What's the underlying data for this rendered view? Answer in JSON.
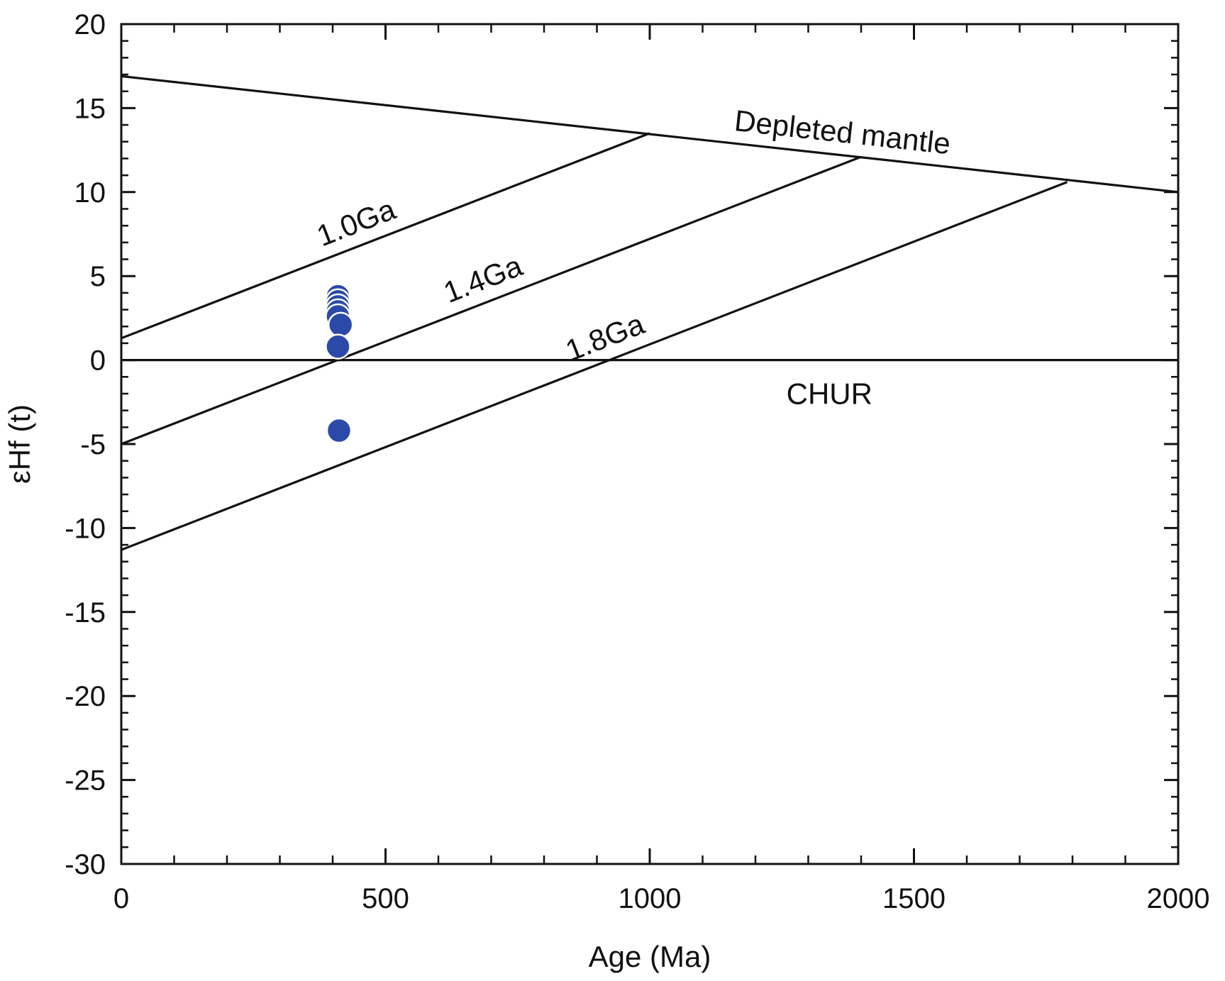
{
  "chart_data": {
    "type": "scatter",
    "title": "",
    "xlabel": "Age (Ma)",
    "ylabel": "εHf (t)",
    "xlim": [
      0,
      2000
    ],
    "ylim": [
      -30,
      20
    ],
    "x_ticks": [
      0,
      500,
      1000,
      1500,
      2000
    ],
    "y_ticks": [
      20,
      15,
      10,
      5,
      0,
      -5,
      -10,
      -15,
      -20,
      -25,
      -30
    ],
    "x_minor_step": 100,
    "y_minor_step": 1,
    "grid": false,
    "reference_lines": [
      {
        "name": "Depleted mantle",
        "label": "Depleted mantle",
        "x": [
          0,
          2000
        ],
        "y": [
          16.9,
          10.0
        ]
      },
      {
        "name": "CHUR",
        "label": "CHUR",
        "x": [
          0,
          2000
        ],
        "y": [
          0,
          0
        ]
      },
      {
        "name": "1.0Ga",
        "label": "1.0Ga",
        "x": [
          0,
          1000
        ],
        "y": [
          1.3,
          13.5
        ]
      },
      {
        "name": "1.4Ga",
        "label": "1.4Ga",
        "x": [
          0,
          1400
        ],
        "y": [
          -5.0,
          12.1
        ]
      },
      {
        "name": "1.8Ga",
        "label": "1.8Ga",
        "x": [
          0,
          1790
        ],
        "y": [
          -11.3,
          10.6
        ]
      }
    ],
    "series": [
      {
        "name": "Samples",
        "color": "#2b4aa8",
        "points": [
          {
            "x": 410,
            "y": 3.8
          },
          {
            "x": 410,
            "y": 3.5
          },
          {
            "x": 410,
            "y": 3.2
          },
          {
            "x": 410,
            "y": 2.9
          },
          {
            "x": 410,
            "y": 2.6
          },
          {
            "x": 415,
            "y": 2.1
          },
          {
            "x": 410,
            "y": 0.8
          },
          {
            "x": 412,
            "y": -4.2
          }
        ]
      }
    ]
  }
}
